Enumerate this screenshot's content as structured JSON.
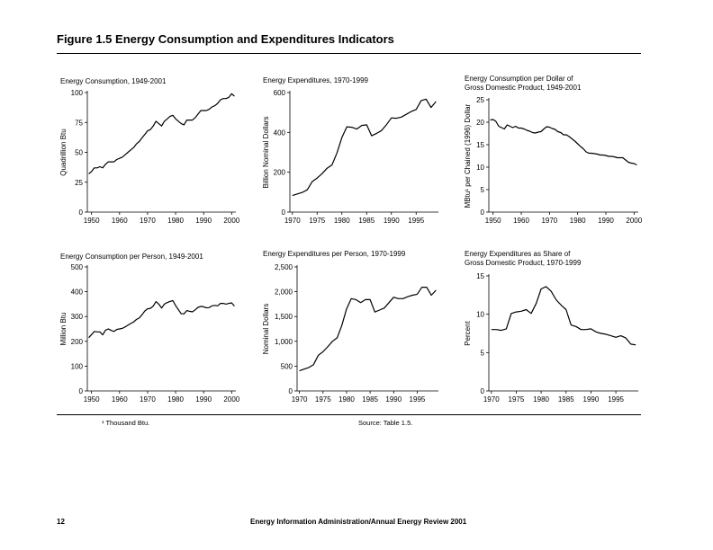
{
  "figure_title": "Figure 1.5  Energy Consumption and Expenditures Indicators",
  "footnote": "¹ Thousand Btu.",
  "source": "Source: Table 1.5.",
  "page_number": "12",
  "running_footer": "Energy Information Administration/Annual Energy Review 2001",
  "chart_data": [
    {
      "type": "line",
      "title": "Energy Consumption, 1949-2001",
      "ylabel": "Quadrillion Btu",
      "xlim": [
        1948.5,
        2001.5
      ],
      "ylim": [
        0,
        100
      ],
      "xticks": [
        1950,
        1960,
        1970,
        1980,
        1990,
        2000
      ],
      "yticks": [
        0,
        25,
        50,
        75,
        100
      ],
      "ytick_labels": [
        "0",
        "25",
        "50",
        "75",
        "100"
      ],
      "x": [
        1949,
        1950,
        1951,
        1952,
        1953,
        1954,
        1955,
        1956,
        1957,
        1958,
        1959,
        1960,
        1961,
        1962,
        1963,
        1964,
        1965,
        1966,
        1967,
        1968,
        1969,
        1970,
        1971,
        1972,
        1973,
        1974,
        1975,
        1976,
        1977,
        1978,
        1979,
        1980,
        1981,
        1982,
        1983,
        1984,
        1985,
        1986,
        1987,
        1988,
        1989,
        1990,
        1991,
        1992,
        1993,
        1994,
        1995,
        1996,
        1997,
        1998,
        1999,
        2000,
        2001
      ],
      "values": [
        32,
        34,
        37,
        37,
        38,
        37,
        40,
        42,
        42,
        42,
        44,
        45,
        46,
        48,
        50,
        52,
        54,
        57,
        59,
        62,
        65,
        68,
        69,
        72,
        76,
        74,
        72,
        76,
        78,
        80,
        81,
        78,
        76,
        74,
        73,
        77,
        77,
        77,
        79,
        82,
        85,
        85,
        85,
        86,
        88,
        89,
        91,
        94,
        95,
        95,
        96,
        99,
        97
      ]
    },
    {
      "type": "line",
      "title": "Energy Expenditures, 1970-1999",
      "ylabel": "Billion Nominal Dollars",
      "xlim": [
        1969.5,
        1999.5
      ],
      "ylim": [
        0,
        600
      ],
      "xticks": [
        1970,
        1975,
        1980,
        1985,
        1990,
        1995
      ],
      "yticks": [
        0,
        200,
        400,
        600
      ],
      "ytick_labels": [
        "0",
        "200",
        "400",
        "600"
      ],
      "x": [
        1970,
        1971,
        1972,
        1973,
        1974,
        1975,
        1976,
        1977,
        1978,
        1979,
        1980,
        1981,
        1982,
        1983,
        1984,
        1985,
        1986,
        1987,
        1988,
        1989,
        1990,
        1991,
        1992,
        1993,
        1994,
        1995,
        1996,
        1997,
        1998,
        1999
      ],
      "values": [
        83,
        91,
        99,
        112,
        153,
        171,
        193,
        220,
        237,
        297,
        375,
        428,
        426,
        417,
        435,
        438,
        383,
        395,
        409,
        439,
        473,
        471,
        477,
        491,
        505,
        515,
        560,
        567,
        525,
        555
      ]
    },
    {
      "type": "line",
      "title": "Energy Consumption per Dollar of\nGross Domestic Product, 1949-2001",
      "ylabel": "MBtu¹ per Chained (1996) Dollar",
      "xlim": [
        1948.5,
        2001.5
      ],
      "ylim": [
        0,
        25
      ],
      "xticks": [
        1950,
        1960,
        1970,
        1980,
        1990,
        2000
      ],
      "yticks": [
        0,
        5,
        10,
        15,
        20,
        25
      ],
      "ytick_labels": [
        "0",
        "5",
        "10",
        "15",
        "20",
        "25"
      ],
      "x": [
        1949,
        1950,
        1951,
        1952,
        1953,
        1954,
        1955,
        1956,
        1957,
        1958,
        1959,
        1960,
        1961,
        1962,
        1963,
        1964,
        1965,
        1966,
        1967,
        1968,
        1969,
        1970,
        1971,
        1972,
        1973,
        1974,
        1975,
        1976,
        1977,
        1978,
        1979,
        1980,
        1981,
        1982,
        1983,
        1984,
        1985,
        1986,
        1987,
        1988,
        1989,
        1990,
        1991,
        1992,
        1993,
        1994,
        1995,
        1996,
        1997,
        1998,
        1999,
        2000,
        2001
      ],
      "values": [
        20.5,
        20.6,
        20.2,
        19.1,
        18.8,
        18.5,
        19.4,
        19.1,
        18.8,
        19.1,
        18.7,
        18.7,
        18.5,
        18.2,
        18.0,
        17.7,
        17.6,
        17.8,
        17.9,
        18.5,
        19.0,
        18.9,
        18.6,
        18.4,
        17.9,
        17.7,
        17.2,
        17.2,
        16.8,
        16.3,
        15.8,
        15.2,
        14.6,
        14.1,
        13.4,
        13.1,
        13.1,
        13.0,
        12.9,
        12.7,
        12.7,
        12.6,
        12.4,
        12.4,
        12.3,
        12.1,
        12.1,
        12.1,
        11.6,
        11.1,
        10.9,
        10.8,
        10.5
      ]
    },
    {
      "type": "line",
      "title": "Energy Consumption per Person, 1949-2001",
      "ylabel": "Million Btu",
      "xlim": [
        1948.5,
        2001.5
      ],
      "ylim": [
        0,
        500
      ],
      "xticks": [
        1950,
        1960,
        1970,
        1980,
        1990,
        2000
      ],
      "yticks": [
        0,
        100,
        200,
        300,
        400,
        500
      ],
      "ytick_labels": [
        "0",
        "100",
        "200",
        "300",
        "400",
        "500"
      ],
      "x": [
        1949,
        1950,
        1951,
        1952,
        1953,
        1954,
        1955,
        1956,
        1957,
        1958,
        1959,
        1960,
        1961,
        1962,
        1963,
        1964,
        1965,
        1966,
        1967,
        1968,
        1969,
        1970,
        1971,
        1972,
        1973,
        1974,
        1975,
        1976,
        1977,
        1978,
        1979,
        1980,
        1981,
        1982,
        1983,
        1984,
        1985,
        1986,
        1987,
        1988,
        1989,
        1990,
        1991,
        1992,
        1993,
        1994,
        1995,
        1996,
        1997,
        1998,
        1999,
        2000,
        2001
      ],
      "values": [
        215,
        227,
        240,
        238,
        238,
        226,
        245,
        250,
        244,
        240,
        248,
        250,
        252,
        258,
        265,
        272,
        278,
        288,
        294,
        307,
        322,
        331,
        333,
        342,
        360,
        350,
        334,
        350,
        356,
        361,
        364,
        344,
        327,
        311,
        311,
        324,
        321,
        319,
        327,
        337,
        341,
        339,
        335,
        336,
        343,
        345,
        343,
        353,
        353,
        350,
        353,
        355,
        342
      ]
    },
    {
      "type": "line",
      "title": "Energy Expenditures per Person, 1970-1999",
      "ylabel": "Nominal Dollars",
      "xlim": [
        1969.5,
        1999.5
      ],
      "ylim": [
        0,
        2500
      ],
      "xticks": [
        1970,
        1975,
        1980,
        1985,
        1990,
        1995
      ],
      "yticks": [
        0,
        500,
        1000,
        1500,
        2000,
        2500
      ],
      "ytick_labels": [
        "0",
        "500",
        "1,000",
        "1,500",
        "2,000",
        "2,500"
      ],
      "x": [
        1970,
        1971,
        1972,
        1973,
        1974,
        1975,
        1976,
        1977,
        1978,
        1979,
        1980,
        1981,
        1982,
        1983,
        1984,
        1985,
        1986,
        1987,
        1988,
        1989,
        1990,
        1991,
        1992,
        1993,
        1994,
        1995,
        1996,
        1997,
        1998,
        1999
      ],
      "values": [
        406,
        440,
        473,
        530,
        720,
        790,
        890,
        1000,
        1070,
        1320,
        1650,
        1860,
        1840,
        1780,
        1840,
        1840,
        1590,
        1630,
        1670,
        1780,
        1890,
        1860,
        1860,
        1900,
        1930,
        1950,
        2090,
        2090,
        1930,
        2030
      ]
    },
    {
      "type": "line",
      "title": "Energy Expenditures as Share of\nGross Domestic Product, 1970-1999",
      "ylabel": "Percent",
      "xlim": [
        1969.5,
        1999.5
      ],
      "ylim": [
        0,
        15
      ],
      "xticks": [
        1970,
        1975,
        1980,
        1985,
        1990,
        1995
      ],
      "yticks": [
        0,
        5,
        10,
        15
      ],
      "ytick_labels": [
        "0",
        "5",
        "10",
        "15"
      ],
      "x": [
        1970,
        1971,
        1972,
        1973,
        1974,
        1975,
        1976,
        1977,
        1978,
        1979,
        1980,
        1981,
        1982,
        1983,
        1984,
        1985,
        1986,
        1987,
        1988,
        1989,
        1990,
        1991,
        1992,
        1993,
        1994,
        1995,
        1996,
        1997,
        1998,
        1999
      ],
      "values": [
        8.0,
        8.0,
        7.9,
        8.1,
        10.1,
        10.3,
        10.4,
        10.6,
        10.1,
        11.4,
        13.3,
        13.6,
        13.0,
        11.9,
        11.2,
        10.6,
        8.6,
        8.4,
        8.0,
        8.0,
        8.1,
        7.7,
        7.5,
        7.4,
        7.2,
        7.0,
        7.2,
        6.9,
        6.1,
        6.0
      ]
    }
  ]
}
